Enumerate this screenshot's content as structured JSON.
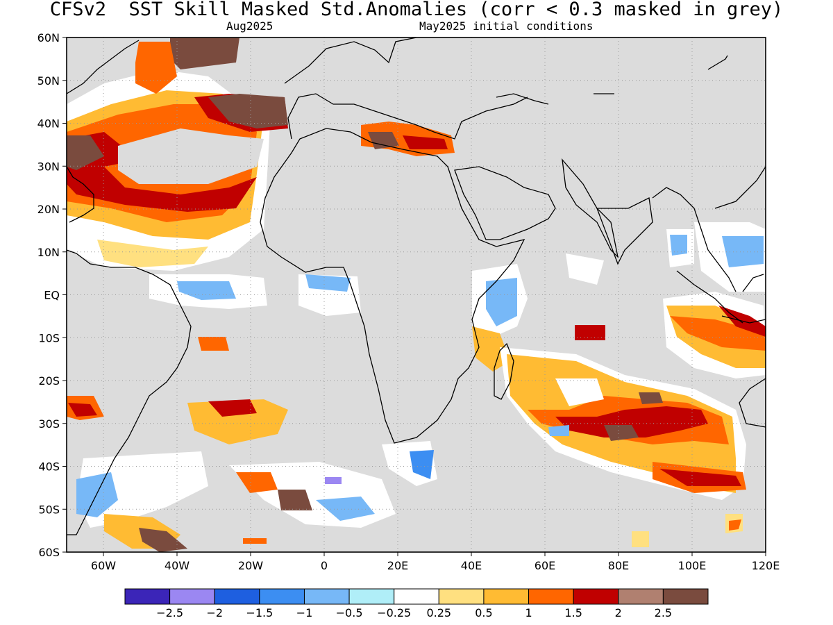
{
  "title": "CFSv2  SST Skill Masked Std.Anomalies (corr < 0.3 masked in grey)",
  "subtitle_left": "Aug2025",
  "subtitle_right": "May2025 initial conditions",
  "map": {
    "region_lon": [
      -70,
      120
    ],
    "region_lat": [
      -60,
      60
    ],
    "mask_color": "#dcdcdc",
    "lat_ticks": [
      "60N",
      "50N",
      "40N",
      "30N",
      "20N",
      "10N",
      "EQ",
      "10S",
      "20S",
      "30S",
      "40S",
      "50S",
      "60S"
    ],
    "lon_ticks": [
      "60W",
      "40W",
      "20W",
      "0",
      "20E",
      "40E",
      "60E",
      "80E",
      "100E",
      "120E"
    ]
  },
  "legend": {
    "colors": [
      "#3b25b8",
      "#9b87f2",
      "#1e5fe0",
      "#3c8ef2",
      "#77b8f7",
      "#b0eef8",
      "#ffffff",
      "#ffe080",
      "#ffbb33",
      "#ff6600",
      "#c00000",
      "#b08070",
      "#7a4b3e"
    ],
    "labels": [
      "−2.5",
      "−2",
      "−1.5",
      "−1",
      "−0.5",
      "−0.25",
      "0.25",
      "0.5",
      "1",
      "1.5",
      "2",
      "2.5"
    ]
  }
}
